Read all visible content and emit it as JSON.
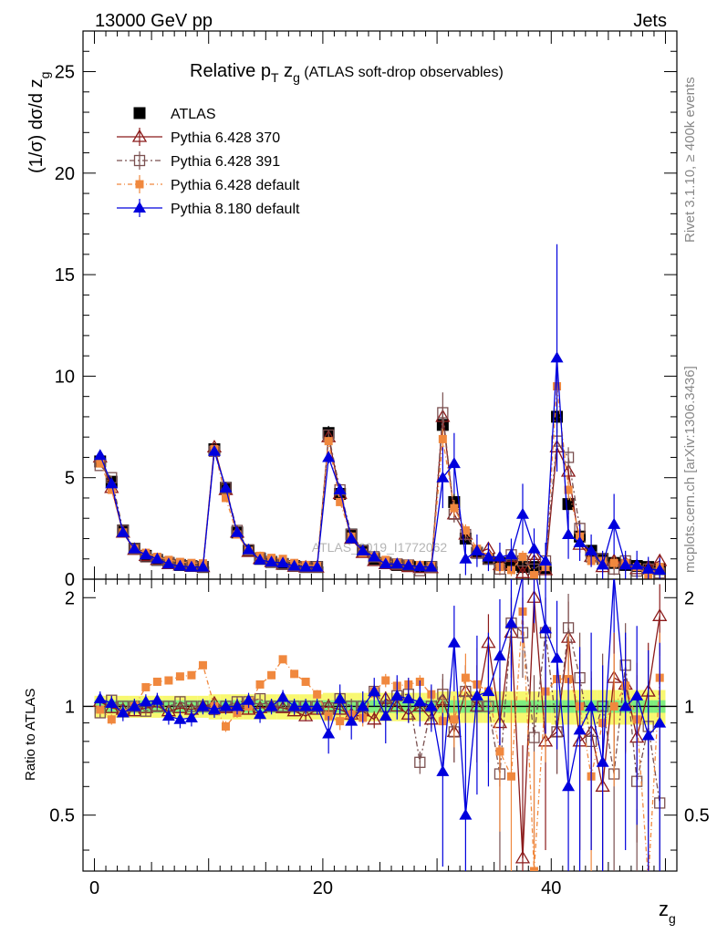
{
  "header": {
    "left": "13000 GeV pp",
    "right": "Jets"
  },
  "side_labels": {
    "top": "Rivet 3.1.10, ≥ 400k events",
    "bottom": "mcplots.cern.ch [arXiv:1306.3436]"
  },
  "watermark": "ATLAS_2019_I1772062",
  "chart_data": {
    "type": "scatter",
    "title": "Relative p_T z_g (ATLAS soft-drop observables)",
    "title_parts": {
      "main": "Relative p",
      "sub1": "T",
      "mid": " z",
      "sub2": "g",
      "tail": " (ATLAS soft-drop observables)"
    },
    "xlabel": "z_g",
    "xlabel_parts": {
      "main": "z",
      "sub": "g"
    },
    "ylabel": "(1/σ) dσ/d z_g",
    "ylabel_parts": {
      "main": "(1/σ) dσ/d z",
      "sub": "g"
    },
    "ratio_ylabel": "Ratio to ATLAS",
    "xlim": [
      -1,
      51
    ],
    "ylim": [
      0,
      27
    ],
    "ratio_ylim": [
      0.35,
      2.25
    ],
    "xticks": [
      0,
      20,
      40
    ],
    "yticks": [
      0,
      5,
      10,
      15,
      20,
      25
    ],
    "ratio_yticks": [
      0.5,
      1,
      2
    ],
    "legend_position": "top-left",
    "x": [
      0.5,
      1.5,
      2.5,
      3.5,
      4.5,
      5.5,
      6.5,
      7.5,
      8.5,
      9.5,
      10.5,
      11.5,
      12.5,
      13.5,
      14.5,
      15.5,
      16.5,
      17.5,
      18.5,
      19.5,
      20.5,
      21.5,
      22.5,
      23.5,
      24.5,
      25.5,
      26.5,
      27.5,
      28.5,
      29.5,
      30.5,
      31.5,
      32.5,
      33.5,
      34.5,
      35.5,
      36.5,
      37.5,
      38.5,
      39.5,
      40.5,
      41.5,
      42.5,
      43.5,
      44.5,
      45.5,
      46.5,
      47.5,
      48.5,
      49.5
    ],
    "data": {
      "name": "ATLAS",
      "values": [
        5.8,
        4.8,
        2.4,
        1.5,
        1.15,
        0.95,
        0.8,
        0.7,
        0.65,
        0.6,
        6.4,
        4.5,
        2.3,
        1.4,
        1.0,
        0.85,
        0.75,
        0.65,
        0.6,
        0.6,
        7.2,
        4.2,
        2.2,
        1.4,
        1.0,
        0.8,
        0.7,
        0.65,
        0.6,
        0.6,
        7.6,
        3.8,
        2.0,
        1.3,
        1.0,
        0.8,
        0.7,
        0.6,
        0.6,
        0.55,
        8.0,
        3.7,
        2.1,
        1.4,
        1.0,
        0.8,
        0.7,
        0.65,
        0.6,
        0.5
      ],
      "errors": [
        0.25,
        0.2,
        0.12,
        0.08,
        0.06,
        0.05,
        0.05,
        0.05,
        0.05,
        0.05,
        0.3,
        0.2,
        0.12,
        0.08,
        0.06,
        0.05,
        0.05,
        0.05,
        0.05,
        0.05,
        0.35,
        0.25,
        0.15,
        0.1,
        0.08,
        0.07,
        0.07,
        0.07,
        0.07,
        0.07,
        0.6,
        0.4,
        0.3,
        0.2,
        0.2,
        0.2,
        0.2,
        0.2,
        0.2,
        0.2,
        0.8,
        0.5,
        0.4,
        0.3,
        0.3,
        0.3,
        0.3,
        0.3,
        0.3,
        0.3
      ]
    },
    "series": [
      {
        "name": "Pythia 6.428 370",
        "color": "#8b1a1a",
        "marker": "triangle-open",
        "dash": "",
        "values": [
          6.0,
          4.5,
          2.3,
          1.45,
          1.15,
          0.95,
          0.75,
          0.68,
          0.62,
          0.6,
          6.5,
          4.4,
          2.3,
          1.35,
          1.0,
          0.85,
          0.72,
          0.62,
          0.58,
          0.58,
          7.0,
          4.2,
          2.0,
          1.3,
          0.9,
          0.75,
          0.7,
          0.6,
          0.55,
          0.55,
          8.0,
          3.2,
          2.2,
          1.3,
          1.5,
          0.7,
          1.1,
          0.3,
          1.2,
          0.45,
          6.5,
          5.3,
          1.7,
          1.1,
          0.6,
          0.9,
          0.8,
          0.5,
          0.6,
          0.9
        ],
        "errors": [
          0.1,
          0.1,
          0.08,
          0.06,
          0.05,
          0.05,
          0.04,
          0.04,
          0.04,
          0.04,
          0.15,
          0.1,
          0.08,
          0.06,
          0.05,
          0.05,
          0.04,
          0.04,
          0.04,
          0.04,
          0.2,
          0.15,
          0.1,
          0.08,
          0.07,
          0.06,
          0.06,
          0.06,
          0.06,
          0.06,
          0.5,
          0.4,
          0.3,
          0.3,
          0.3,
          0.3,
          0.3,
          0.3,
          0.3,
          0.3,
          0.6,
          0.5,
          0.4,
          0.3,
          0.3,
          0.3,
          0.3,
          0.3,
          0.3,
          0.3
        ]
      },
      {
        "name": "Pythia 6.428 391",
        "color": "#7a5050",
        "marker": "square-open",
        "dash": "6,3,2,3",
        "values": [
          5.6,
          5.0,
          2.4,
          1.5,
          1.1,
          0.95,
          0.8,
          0.72,
          0.65,
          0.6,
          6.3,
          4.5,
          2.4,
          1.45,
          1.05,
          0.85,
          0.75,
          0.65,
          0.6,
          0.6,
          7.1,
          4.4,
          2.2,
          1.4,
          1.1,
          0.8,
          0.75,
          0.7,
          0.42,
          0.6,
          8.2,
          3.2,
          2.2,
          1.3,
          1.0,
          0.5,
          1.2,
          0.9,
          0.5,
          0.9,
          6.8,
          6.0,
          2.5,
          1.1,
          1.0,
          0.5,
          0.9,
          0.4,
          0.5,
          0.3
        ],
        "errors": [
          0.1,
          0.1,
          0.08,
          0.06,
          0.05,
          0.05,
          0.04,
          0.04,
          0.04,
          0.04,
          0.15,
          0.1,
          0.08,
          0.06,
          0.05,
          0.05,
          0.04,
          0.04,
          0.04,
          0.04,
          0.2,
          0.15,
          0.1,
          0.08,
          0.07,
          0.06,
          0.06,
          0.06,
          0.06,
          0.06,
          1.0,
          0.4,
          0.3,
          0.3,
          0.3,
          0.3,
          0.3,
          0.3,
          0.3,
          0.3,
          0.6,
          0.5,
          0.4,
          0.3,
          0.3,
          0.3,
          0.3,
          0.3,
          0.3,
          0.3
        ]
      },
      {
        "name": "Pythia 6.428 default",
        "color": "#f0883e",
        "marker": "square-filled",
        "dash": "5,3,1,3",
        "values": [
          5.7,
          4.4,
          2.3,
          1.5,
          1.3,
          1.1,
          0.95,
          0.85,
          0.8,
          0.78,
          6.4,
          4.0,
          2.2,
          1.4,
          1.15,
          1.05,
          1.0,
          0.8,
          0.7,
          0.65,
          6.8,
          3.8,
          2.1,
          1.3,
          1.1,
          0.95,
          0.8,
          0.75,
          0.7,
          0.65,
          6.9,
          3.5,
          2.4,
          1.5,
          1.1,
          0.6,
          0.45,
          1.1,
          0.2,
          0.6,
          9.5,
          4.4,
          2.1,
          0.9,
          0.9,
          0.8,
          0.8,
          0.6,
          0.2,
          0.6
        ],
        "errors": [
          0.1,
          0.1,
          0.08,
          0.06,
          0.05,
          0.05,
          0.04,
          0.04,
          0.04,
          0.04,
          0.15,
          0.1,
          0.08,
          0.06,
          0.05,
          0.05,
          0.04,
          0.04,
          0.04,
          0.04,
          0.2,
          0.15,
          0.1,
          0.08,
          0.07,
          0.06,
          0.06,
          0.06,
          0.06,
          0.06,
          0.5,
          0.4,
          0.3,
          0.3,
          0.3,
          0.3,
          0.3,
          0.3,
          0.3,
          0.3,
          0.6,
          0.5,
          0.4,
          0.3,
          0.3,
          0.3,
          0.3,
          0.3,
          0.3,
          0.3
        ]
      },
      {
        "name": "Pythia 8.180 default",
        "color": "#0000dd",
        "marker": "triangle-filled",
        "dash": "",
        "values": [
          6.1,
          4.7,
          2.3,
          1.5,
          1.2,
          1.0,
          0.75,
          0.65,
          0.6,
          0.6,
          6.3,
          4.5,
          2.3,
          1.45,
          0.95,
          0.85,
          0.8,
          0.65,
          0.6,
          0.6,
          6.0,
          4.4,
          2.0,
          1.4,
          1.1,
          0.75,
          0.75,
          0.68,
          0.62,
          0.6,
          5.0,
          5.7,
          1.0,
          1.4,
          1.1,
          1.1,
          1.2,
          3.2,
          1.5,
          0.9,
          10.9,
          2.2,
          1.8,
          1.4,
          0.7,
          2.7,
          0.7,
          0.7,
          0.5,
          0.45
        ],
        "errors": [
          0.2,
          0.2,
          0.15,
          0.1,
          0.08,
          0.07,
          0.06,
          0.06,
          0.06,
          0.06,
          0.2,
          0.2,
          0.15,
          0.1,
          0.08,
          0.07,
          0.06,
          0.06,
          0.06,
          0.06,
          0.3,
          0.3,
          0.25,
          0.2,
          0.15,
          0.15,
          0.15,
          0.15,
          0.15,
          0.15,
          1.5,
          1.5,
          0.8,
          0.8,
          0.7,
          0.7,
          0.8,
          1.5,
          1.0,
          0.9,
          5.6,
          1.2,
          0.9,
          0.8,
          0.7,
          1.5,
          0.7,
          0.7,
          0.6,
          0.6
        ]
      }
    ],
    "ratio": {
      "band_inner_color": "#7fee7f",
      "band_outer_color": "#f8f870",
      "inner": [
        0.04,
        0.04,
        0.04,
        0.04,
        0.04,
        0.04,
        0.04,
        0.04,
        0.04,
        0.04,
        0.04,
        0.04,
        0.04,
        0.04,
        0.04,
        0.04,
        0.04,
        0.04,
        0.04,
        0.04,
        0.04,
        0.04,
        0.04,
        0.04,
        0.04,
        0.04,
        0.04,
        0.04,
        0.04,
        0.04,
        0.04,
        0.04,
        0.04,
        0.04,
        0.04,
        0.04,
        0.04,
        0.04,
        0.04,
        0.04,
        0.04,
        0.04,
        0.04,
        0.04,
        0.04,
        0.04,
        0.04,
        0.04,
        0.04,
        0.04
      ],
      "outer": [
        0.07,
        0.07,
        0.07,
        0.07,
        0.07,
        0.07,
        0.07,
        0.07,
        0.07,
        0.07,
        0.08,
        0.08,
        0.08,
        0.08,
        0.08,
        0.08,
        0.08,
        0.08,
        0.08,
        0.08,
        0.09,
        0.09,
        0.09,
        0.09,
        0.09,
        0.09,
        0.09,
        0.09,
        0.09,
        0.09,
        0.1,
        0.1,
        0.1,
        0.1,
        0.1,
        0.1,
        0.1,
        0.1,
        0.1,
        0.1,
        0.11,
        0.11,
        0.11,
        0.11,
        0.11,
        0.11,
        0.11,
        0.11,
        0.11,
        0.11
      ],
      "series": [
        {
          "name": "Pythia 6.428 370",
          "values": [
            1.03,
            0.99,
            0.98,
            0.97,
            0.99,
            1.0,
            0.97,
            0.99,
            0.98,
            1.0,
            1.02,
            0.99,
            1.0,
            0.98,
            0.99,
            1.0,
            0.99,
            0.97,
            0.94,
            0.98,
            1.0,
            0.98,
            0.95,
            0.97,
            0.92,
            1.05,
            1.0,
            0.95,
            1.0,
            0.92,
            1.04,
            0.85,
            1.1,
            1.0,
            1.5,
            0.9,
            1.6,
            0.38,
            2.0,
            0.8,
            0.85,
            1.55,
            0.8,
            0.85,
            0.6,
            1.2,
            1.15,
            0.82,
            1.1,
            1.78
          ],
          "errors": [
            0.03,
            0.03,
            0.03,
            0.03,
            0.03,
            0.03,
            0.03,
            0.03,
            0.03,
            0.03,
            0.03,
            0.03,
            0.03,
            0.03,
            0.03,
            0.03,
            0.03,
            0.03,
            0.03,
            0.03,
            0.05,
            0.05,
            0.05,
            0.05,
            0.05,
            0.05,
            0.05,
            0.05,
            0.05,
            0.05,
            0.15,
            0.15,
            0.2,
            0.3,
            0.3,
            0.3,
            0.4,
            0.4,
            0.4,
            0.4,
            0.2,
            0.4,
            0.4,
            0.4,
            0.4,
            0.4,
            0.4,
            0.4,
            0.4,
            0.4
          ]
        },
        {
          "name": "Pythia 6.428 391",
          "values": [
            0.96,
            1.04,
            1.0,
            1.0,
            0.97,
            1.0,
            1.0,
            1.03,
            1.0,
            1.0,
            0.98,
            1.0,
            1.03,
            1.03,
            1.05,
            1.0,
            1.0,
            1.0,
            1.0,
            1.0,
            0.99,
            1.05,
            1.0,
            1.0,
            1.1,
            1.0,
            1.07,
            1.08,
            0.7,
            1.0,
            1.08,
            0.85,
            1.1,
            1.0,
            1.0,
            0.65,
            1.7,
            1.6,
            0.82,
            1.6,
            0.85,
            1.65,
            1.2,
            0.8,
            1.0,
            0.65,
            1.3,
            0.62,
            0.88,
            0.54
          ],
          "errors": [
            0.03,
            0.03,
            0.03,
            0.03,
            0.03,
            0.03,
            0.03,
            0.03,
            0.03,
            0.03,
            0.03,
            0.03,
            0.03,
            0.03,
            0.03,
            0.03,
            0.03,
            0.03,
            0.03,
            0.03,
            0.05,
            0.05,
            0.05,
            0.05,
            0.05,
            0.05,
            0.05,
            0.05,
            0.05,
            0.05,
            0.15,
            0.15,
            0.2,
            0.3,
            0.3,
            0.3,
            0.4,
            0.4,
            0.4,
            0.4,
            0.2,
            0.4,
            0.4,
            0.4,
            0.4,
            0.4,
            0.4,
            0.4,
            0.4,
            0.4
          ]
        },
        {
          "name": "Pythia 6.428 default",
          "values": [
            0.98,
            0.92,
            0.96,
            1.0,
            1.13,
            1.17,
            1.18,
            1.21,
            1.22,
            1.3,
            1.0,
            0.88,
            0.96,
            1.0,
            1.15,
            1.22,
            1.35,
            1.23,
            1.17,
            1.08,
            0.94,
            0.91,
            0.95,
            0.93,
            1.1,
            1.18,
            1.14,
            1.15,
            1.17,
            1.08,
            0.91,
            0.92,
            1.2,
            1.15,
            1.1,
            0.75,
            0.64,
            1.83,
            0.35,
            1.1,
            1.19,
            1.19,
            1.0,
            0.64,
            0.9,
            1.0,
            1.14,
            0.92,
            0.33,
            1.2
          ],
          "errors": [
            0.03,
            0.03,
            0.03,
            0.03,
            0.03,
            0.03,
            0.03,
            0.03,
            0.03,
            0.03,
            0.03,
            0.03,
            0.03,
            0.03,
            0.03,
            0.03,
            0.03,
            0.03,
            0.03,
            0.03,
            0.05,
            0.05,
            0.05,
            0.05,
            0.05,
            0.05,
            0.05,
            0.05,
            0.05,
            0.05,
            0.15,
            0.15,
            0.2,
            0.3,
            0.3,
            0.3,
            0.4,
            0.4,
            0.4,
            0.4,
            0.2,
            0.4,
            0.4,
            0.4,
            0.4,
            0.4,
            0.4,
            0.4,
            0.4,
            0.4
          ]
        },
        {
          "name": "Pythia 8.180 default",
          "values": [
            1.05,
            1.02,
            0.96,
            1.0,
            1.03,
            1.04,
            0.94,
            0.92,
            0.93,
            1.0,
            0.98,
            1.0,
            1.0,
            1.04,
            0.95,
            1.0,
            1.06,
            1.0,
            1.0,
            1.0,
            0.84,
            1.05,
            0.91,
            1.0,
            1.1,
            0.94,
            1.07,
            1.05,
            1.03,
            1.0,
            0.66,
            1.5,
            0.5,
            1.07,
            1.1,
            1.38,
            1.7,
            2.3,
            2.5,
            1.64,
            1.36,
            0.6,
            0.86,
            1.0,
            0.7,
            2.3,
            1.0,
            1.07,
            0.83,
            0.9
          ],
          "errors": [
            0.05,
            0.05,
            0.05,
            0.05,
            0.05,
            0.05,
            0.05,
            0.05,
            0.05,
            0.05,
            0.05,
            0.05,
            0.05,
            0.05,
            0.05,
            0.05,
            0.05,
            0.05,
            0.05,
            0.05,
            0.1,
            0.1,
            0.1,
            0.1,
            0.1,
            0.15,
            0.15,
            0.15,
            0.15,
            0.15,
            0.3,
            0.4,
            0.4,
            0.5,
            0.5,
            0.6,
            0.6,
            0.8,
            0.8,
            0.8,
            0.6,
            0.6,
            0.6,
            0.6,
            0.6,
            0.7,
            0.6,
            0.6,
            0.6,
            0.6
          ]
        }
      ]
    }
  }
}
